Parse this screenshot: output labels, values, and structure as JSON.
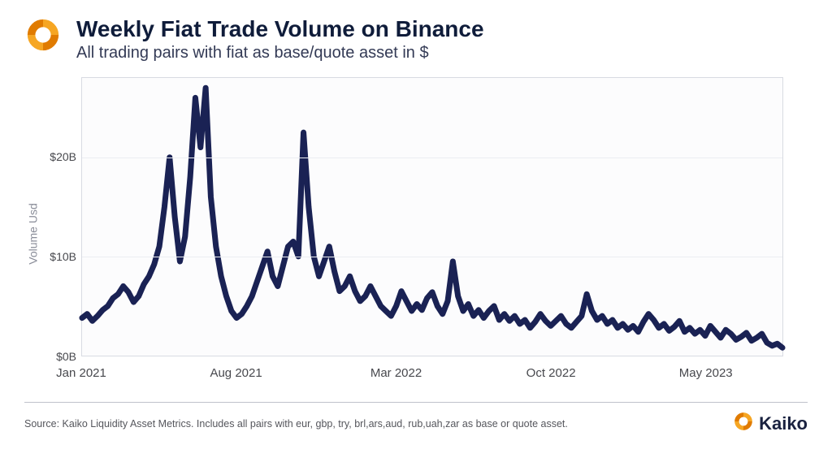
{
  "header": {
    "title": "Weekly Fiat Trade Volume on Binance",
    "subtitle": "All trading pairs with fiat as base/quote asset in $"
  },
  "chart": {
    "type": "line",
    "ylabel": "Volume Usd",
    "ylim": [
      0,
      28
    ],
    "yticks": [
      {
        "value": 0,
        "label": "$0B"
      },
      {
        "value": 10,
        "label": "$10B"
      },
      {
        "value": 20,
        "label": "$20B"
      }
    ],
    "xlim": [
      0,
      136
    ],
    "xticks": [
      {
        "value": 0,
        "label": "Jan 2021"
      },
      {
        "value": 30,
        "label": "Aug 2021"
      },
      {
        "value": 61,
        "label": "Mar 2022"
      },
      {
        "value": 91,
        "label": "Oct 2022"
      },
      {
        "value": 121,
        "label": "May 2023"
      }
    ],
    "line_color": "#1a2254",
    "line_width": 2.2,
    "background_color": "#fcfcfd",
    "grid_color": "#eceef2",
    "border_color": "#d8dbe2",
    "series": [
      3.8,
      4.2,
      3.5,
      4.0,
      4.6,
      5.0,
      5.8,
      6.2,
      7.0,
      6.4,
      5.4,
      6.0,
      7.2,
      8.0,
      9.2,
      11.0,
      15.0,
      20.0,
      14.0,
      9.5,
      12.0,
      18.0,
      26.0,
      21.0,
      27.0,
      16.0,
      11.0,
      8.0,
      6.0,
      4.5,
      3.8,
      4.2,
      5.0,
      6.0,
      7.5,
      9.0,
      10.5,
      8.0,
      7.0,
      9.0,
      11.0,
      11.5,
      10.0,
      22.5,
      15.0,
      10.0,
      8.0,
      9.5,
      11.0,
      8.5,
      6.5,
      7.0,
      8.0,
      6.5,
      5.5,
      6.0,
      7.0,
      6.0,
      5.0,
      4.5,
      4.0,
      5.0,
      6.5,
      5.5,
      4.5,
      5.2,
      4.6,
      5.8,
      6.4,
      5.0,
      4.2,
      5.5,
      9.5,
      6.0,
      4.5,
      5.2,
      4.0,
      4.6,
      3.8,
      4.5,
      5.0,
      3.6,
      4.2,
      3.5,
      4.0,
      3.2,
      3.6,
      2.8,
      3.4,
      4.2,
      3.5,
      3.0,
      3.5,
      4.0,
      3.2,
      2.8,
      3.4,
      4.0,
      6.2,
      4.5,
      3.6,
      4.0,
      3.2,
      3.6,
      2.8,
      3.2,
      2.6,
      3.0,
      2.4,
      3.4,
      4.2,
      3.6,
      2.8,
      3.2,
      2.5,
      2.9,
      3.5,
      2.4,
      2.8,
      2.2,
      2.6,
      2.0,
      3.0,
      2.4,
      1.8,
      2.6,
      2.2,
      1.6,
      1.9,
      2.3,
      1.5,
      1.8,
      2.2,
      1.3,
      1.0,
      1.2,
      0.8
    ]
  },
  "footer": {
    "source": "Source: Kaiko Liquidity Asset Metrics. Includes all pairs with eur, gbp, try, brl,ars,aud, rub,uah,zar as base or quote asset.",
    "brand_name": "Kaiko"
  },
  "colors": {
    "title": "#0f1c3a",
    "subtitle": "#333a55",
    "axis_text": "#47484d",
    "ylabel": "#8a8d99",
    "brand_orange": "#f59c1a",
    "brand_dark": "#1a2240"
  }
}
